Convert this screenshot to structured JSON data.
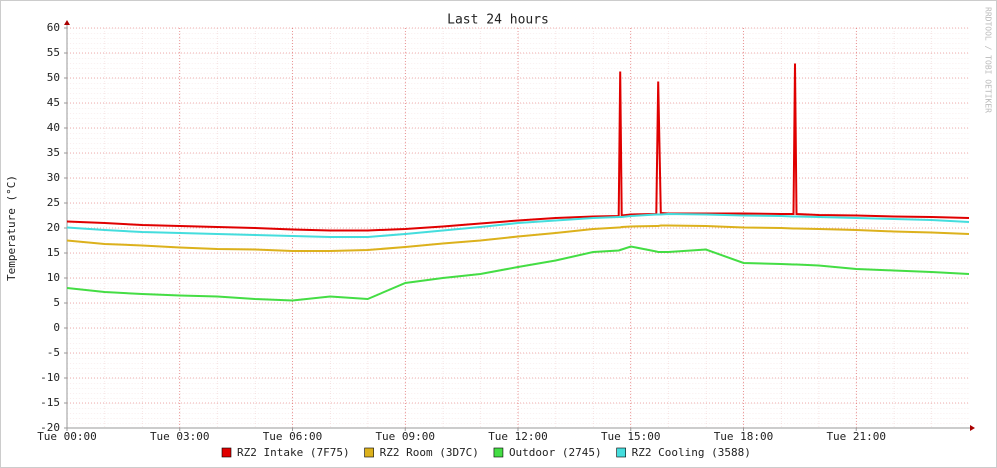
{
  "chart_data": {
    "type": "line",
    "title": "Last 24 hours",
    "ylabel": "Temperature (°C)",
    "watermark": "RRDTOOL / TOBI OETIKER",
    "x": [
      0,
      1,
      2,
      3,
      4,
      5,
      6,
      7,
      8,
      9,
      10,
      11,
      12,
      13,
      14,
      14.68,
      14.72,
      14.76,
      15,
      15.68,
      15.73,
      15.8,
      16,
      17,
      18,
      19,
      19.33,
      19.37,
      19.41,
      20,
      21,
      22,
      23,
      24
    ],
    "xlim": [
      0,
      24
    ],
    "xticks": [
      {
        "value": 0,
        "label": "Tue 00:00"
      },
      {
        "value": 3,
        "label": "Tue 03:00"
      },
      {
        "value": 6,
        "label": "Tue 06:00"
      },
      {
        "value": 9,
        "label": "Tue 09:00"
      },
      {
        "value": 12,
        "label": "Tue 12:00"
      },
      {
        "value": 15,
        "label": "Tue 15:00"
      },
      {
        "value": 18,
        "label": "Tue 18:00"
      },
      {
        "value": 21,
        "label": "Tue 21:00"
      }
    ],
    "ylim": [
      -20,
      60
    ],
    "yticks": [
      -20,
      -15,
      -10,
      -5,
      0,
      5,
      10,
      15,
      20,
      25,
      30,
      35,
      40,
      45,
      50,
      55,
      60
    ],
    "grid": true,
    "legend": "bottom",
    "series": [
      {
        "name": "RZ2 Intake (7F75)",
        "color": "#e00000",
        "values": [
          21.3,
          21,
          20.6,
          20.4,
          20.2,
          20,
          19.7,
          19.5,
          19.5,
          19.8,
          20.3,
          20.9,
          21.5,
          22,
          22.3,
          22.4,
          51.3,
          22.5,
          22.7,
          22.8,
          49.3,
          23,
          22.9,
          22.9,
          22.9,
          22.8,
          22.8,
          52.9,
          22.8,
          22.6,
          22.5,
          22.3,
          22.2,
          22
        ]
      },
      {
        "name": "RZ2 Room (3D7C)",
        "color": "#dcb11c",
        "values": [
          17.5,
          16.8,
          16.5,
          16.1,
          15.8,
          15.7,
          15.4,
          15.4,
          15.6,
          16.2,
          16.9,
          17.5,
          18.3,
          19,
          19.8,
          20.1,
          20.1,
          20.2,
          20.3,
          20.4,
          20.4,
          20.5,
          20.5,
          20.4,
          20.1,
          20,
          19.9,
          19.9,
          19.9,
          19.8,
          19.6,
          19.3,
          19.1,
          18.8
        ]
      },
      {
        "name": "Outdoor (2745)",
        "color": "#44dd44",
        "values": [
          8,
          7.2,
          6.8,
          6.5,
          6.3,
          5.8,
          5.5,
          6.3,
          5.8,
          9,
          10,
          10.8,
          12.2,
          13.5,
          15.2,
          15.5,
          15.6,
          15.7,
          16.3,
          15.3,
          15.2,
          15.2,
          15.2,
          15.7,
          13,
          12.8,
          12.7,
          12.7,
          12.7,
          12.5,
          11.8,
          11.5,
          11.2,
          10.8
        ]
      },
      {
        "name": "RZ2 Cooling (3588)",
        "color": "#44dddd",
        "values": [
          20.1,
          19.6,
          19.2,
          19,
          18.8,
          18.6,
          18.4,
          18.2,
          18.2,
          18.8,
          19.5,
          20.2,
          21,
          21.5,
          22,
          22.2,
          22.2,
          22.2,
          22.4,
          22.7,
          22.7,
          22.7,
          22.8,
          22.7,
          22.5,
          22.4,
          22.3,
          22.3,
          22.3,
          22.2,
          22,
          21.8,
          21.6,
          21.2
        ]
      }
    ]
  }
}
